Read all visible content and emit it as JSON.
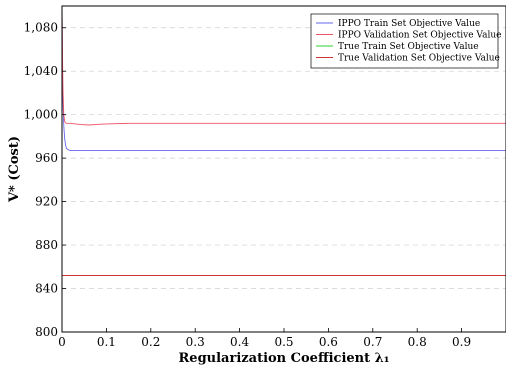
{
  "chart_data": {
    "type": "line",
    "xlabel": "Regularization Coefficient λ₁",
    "ylabel": "V* (Cost)",
    "xlim": [
      0,
      1
    ],
    "ylim": [
      800,
      1100
    ],
    "x_ticks": [
      0,
      0.1,
      0.2,
      0.3,
      0.4,
      0.5,
      0.6,
      0.7,
      0.8,
      0.9
    ],
    "x_tick_labels": [
      "0",
      "0.1",
      "0.2",
      "0.3",
      "0.4",
      "0.5",
      "0.6",
      "0.7",
      "0.8",
      "0.9"
    ],
    "y_ticks": [
      800,
      840,
      880,
      920,
      960,
      1000,
      1040,
      1080
    ],
    "y_tick_labels": [
      "800",
      "840",
      "880",
      "920",
      "960",
      "1,000",
      "1,040",
      "1,080"
    ],
    "grid": "horizontal dashed",
    "legend_position": "top-right",
    "series": [
      {
        "name": "IPPO Train Set Objective Value",
        "color": "#6666ee",
        "x": [
          0,
          0.001,
          0.002,
          0.004,
          0.006,
          0.008,
          0.01,
          0.015,
          0.02,
          0.03,
          0.05,
          0.1,
          0.2,
          0.5,
          1.0
        ],
        "y": [
          1100,
          1050,
          1015,
          990,
          978,
          972,
          969,
          967.5,
          967,
          967,
          967,
          967,
          967,
          967,
          967
        ]
      },
      {
        "name": "IPPO Validation Set Objective Value",
        "color": "#ee5566",
        "x": [
          0,
          0.001,
          0.002,
          0.004,
          0.006,
          0.008,
          0.01,
          0.015,
          0.02,
          0.03,
          0.04,
          0.06,
          0.08,
          0.1,
          0.15,
          0.2,
          0.3,
          0.5,
          1.0
        ],
        "y": [
          1100,
          1060,
          1025,
          1000,
          994,
          992.5,
          992,
          992,
          992,
          991.5,
          991,
          990.5,
          991,
          991.5,
          992,
          992,
          992,
          992,
          992
        ]
      },
      {
        "name": "True Train Set Objective Value",
        "color": "#33cc33",
        "x": [
          0,
          1.0
        ],
        "y": [
          852,
          852
        ]
      },
      {
        "name": "True Validation Set Objective Value",
        "color": "#cc3333",
        "x": [
          0,
          1.0
        ],
        "y": [
          852,
          852
        ]
      }
    ]
  }
}
